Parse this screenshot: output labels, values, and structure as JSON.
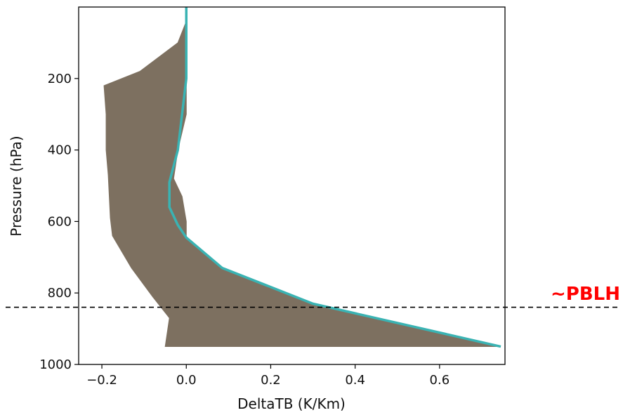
{
  "chart_data": {
    "type": "area",
    "xlabel": "DeltaTB (K/Km)",
    "ylabel": "Pressure (hPa)",
    "xlim": [
      -0.255,
      0.755
    ],
    "ylim": [
      1000,
      0
    ],
    "y_inverted": true,
    "x_ticks": [
      -0.2,
      0.0,
      0.2,
      0.4,
      0.6
    ],
    "x_tick_labels": [
      "−0.2",
      "0.0",
      "0.2",
      "0.4",
      "0.6"
    ],
    "y_ticks": [
      200,
      400,
      600,
      800,
      1000
    ],
    "y_tick_labels": [
      "200",
      "400",
      "600",
      "800",
      "1000"
    ],
    "grid": false,
    "series": [
      {
        "kind": "line",
        "color": "#3ab3b3",
        "points": [
          {
            "x": 0.0,
            "y": 0
          },
          {
            "x": 0.0,
            "y": 100
          },
          {
            "x": 0.0,
            "y": 200
          },
          {
            "x": -0.01,
            "y": 300
          },
          {
            "x": -0.02,
            "y": 400
          },
          {
            "x": -0.04,
            "y": 490
          },
          {
            "x": -0.04,
            "y": 560
          },
          {
            "x": -0.02,
            "y": 610
          },
          {
            "x": 0.0,
            "y": 645
          },
          {
            "x": 0.085,
            "y": 730
          },
          {
            "x": 0.3,
            "y": 830
          },
          {
            "x": 0.745,
            "y": 950
          }
        ]
      },
      {
        "kind": "range-band",
        "color": "#7d7060",
        "left_edge": [
          {
            "x": 0.0,
            "y": 40
          },
          {
            "x": -0.02,
            "y": 100
          },
          {
            "x": -0.11,
            "y": 180
          },
          {
            "x": -0.195,
            "y": 220
          },
          {
            "x": -0.19,
            "y": 300
          },
          {
            "x": -0.19,
            "y": 400
          },
          {
            "x": -0.185,
            "y": 470
          },
          {
            "x": -0.18,
            "y": 590
          },
          {
            "x": -0.175,
            "y": 640
          },
          {
            "x": -0.13,
            "y": 730
          },
          {
            "x": -0.08,
            "y": 810
          },
          {
            "x": -0.04,
            "y": 870
          },
          {
            "x": -0.05,
            "y": 950
          }
        ],
        "right_edge": [
          {
            "x": 0.745,
            "y": 950
          },
          {
            "x": 0.3,
            "y": 830
          },
          {
            "x": 0.085,
            "y": 730
          },
          {
            "x": 0.0,
            "y": 645
          },
          {
            "x": 0.0,
            "y": 600
          },
          {
            "x": -0.01,
            "y": 530
          },
          {
            "x": -0.03,
            "y": 480
          },
          {
            "x": -0.02,
            "y": 400
          },
          {
            "x": 0.0,
            "y": 300
          },
          {
            "x": 0.0,
            "y": 200
          },
          {
            "x": 0.0,
            "y": 100
          },
          {
            "x": 0.0,
            "y": 40
          }
        ]
      }
    ],
    "reference_line": {
      "y": 840,
      "style": "dashed",
      "color": "#000000",
      "label": "~PBLH",
      "label_color": "#ff0000"
    }
  }
}
